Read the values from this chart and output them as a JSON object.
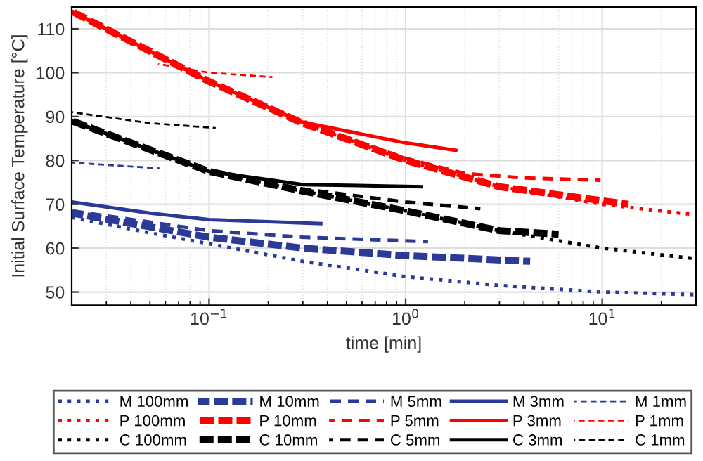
{
  "chart_data": {
    "type": "line",
    "xlabel": "time [min]",
    "ylabel": "Initial Surface Temperature [°C]",
    "log": "x",
    "grid": true,
    "legend": "bottom",
    "xlim": [
      0.02,
      30
    ],
    "xticks": [
      {
        "value": 0.1,
        "label": "10$^{−1}$"
      },
      {
        "value": 1,
        "label": "10$^{0}$"
      },
      {
        "value": 10,
        "label": "10$^{1}$"
      }
    ],
    "ylim": [
      47,
      115
    ],
    "yticks": [
      50,
      60,
      70,
      80,
      90,
      100,
      110
    ],
    "series": [
      {
        "name": "M 100mm",
        "color": "#2b3a96",
        "line_style": "dotted",
        "x": [
          0.02,
          0.05,
          0.1,
          0.3,
          1,
          3,
          10,
          30
        ],
        "values": [
          67,
          63.5,
          61,
          57,
          53.5,
          51.5,
          50,
          49.4
        ]
      },
      {
        "name": "M 10mm",
        "color": "#2b3a96",
        "line_style": "dashed",
        "x": [
          0.02,
          0.1,
          0.3,
          1,
          4.3
        ],
        "values": [
          68,
          62.5,
          60,
          58.3,
          57
        ]
      },
      {
        "name": "M 5mm",
        "color": "#2b3a96",
        "line_style": "dashed",
        "x": [
          0.02,
          0.1,
          0.3,
          1.3
        ],
        "values": [
          68.5,
          64,
          62.5,
          61.5
        ]
      },
      {
        "name": "M 3mm",
        "color": "#2b3a96",
        "line_style": "solid",
        "x": [
          0.02,
          0.05,
          0.1,
          0.37
        ],
        "values": [
          70.5,
          68,
          66.5,
          65.6
        ]
      },
      {
        "name": "M 1mm",
        "color": "#2b3a96",
        "line_style": "dashed",
        "x": [
          0.02,
          0.056
        ],
        "values": [
          79.5,
          78.2
        ]
      },
      {
        "name": "P 100mm",
        "color": "#ff0000",
        "line_style": "dotted",
        "x": [
          0.02,
          0.1,
          0.3,
          1,
          3,
          10,
          30
        ],
        "values": [
          114,
          98,
          88.5,
          80,
          74,
          70,
          67.6
        ]
      },
      {
        "name": "P 10mm",
        "color": "#ff0000",
        "line_style": "dashed",
        "x": [
          0.02,
          0.1,
          0.3,
          1,
          3,
          13.6
        ],
        "values": [
          114,
          98,
          88.5,
          80,
          74,
          70
        ]
      },
      {
        "name": "P 5mm",
        "color": "#ff0000",
        "line_style": "dashed",
        "x": [
          0.02,
          0.1,
          0.3,
          1,
          2,
          4,
          9.8
        ],
        "values": [
          114,
          98,
          88.5,
          80.5,
          77,
          76,
          75.5
        ]
      },
      {
        "name": "P 3mm",
        "color": "#ff0000",
        "line_style": "solid",
        "x": [
          0.02,
          0.1,
          0.3,
          1,
          1.8
        ],
        "values": [
          114,
          98,
          88.7,
          84,
          82.3
        ]
      },
      {
        "name": "P 1mm",
        "color": "#ff0000",
        "line_style": "dashed",
        "x": [
          0.055,
          0.1,
          0.21
        ],
        "values": [
          102,
          100,
          99
        ]
      },
      {
        "name": "C 100mm",
        "color": "#000000",
        "line_style": "dotted",
        "x": [
          0.02,
          0.1,
          0.3,
          1,
          3,
          10,
          30
        ],
        "values": [
          89,
          77.5,
          73,
          68.5,
          64,
          60,
          57.6
        ]
      },
      {
        "name": "C 10mm",
        "color": "#000000",
        "line_style": "dashed",
        "x": [
          0.02,
          0.1,
          0.3,
          1,
          3,
          6
        ],
        "values": [
          89,
          77.5,
          73,
          68.5,
          64,
          63.2
        ]
      },
      {
        "name": "C 5mm",
        "color": "#000000",
        "line_style": "dashed",
        "x": [
          0.02,
          0.1,
          0.3,
          1,
          2.4
        ],
        "values": [
          89,
          77.5,
          73.5,
          70.5,
          69
        ]
      },
      {
        "name": "C 3mm",
        "color": "#000000",
        "line_style": "solid",
        "x": [
          0.02,
          0.1,
          0.3,
          1.2
        ],
        "values": [
          89,
          77.5,
          74.5,
          74
        ]
      },
      {
        "name": "C 1mm",
        "color": "#000000",
        "line_style": "dashed",
        "x": [
          0.02,
          0.05,
          0.108
        ],
        "values": [
          91,
          88.5,
          87.4
        ]
      }
    ]
  }
}
